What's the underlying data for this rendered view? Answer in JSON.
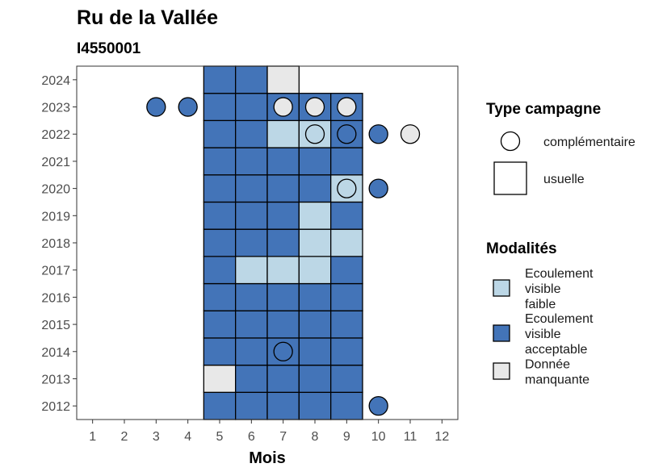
{
  "chart_data": {
    "type": "heatmap",
    "title": "Ru de la Vallée",
    "subtitle": "I4550001",
    "xlabel": "Mois",
    "ylabel": "",
    "x_ticks": [
      "1",
      "2",
      "3",
      "4",
      "5",
      "6",
      "7",
      "8",
      "9",
      "10",
      "11",
      "12"
    ],
    "y_ticks": [
      "2012",
      "2013",
      "2014",
      "2015",
      "2016",
      "2017",
      "2018",
      "2019",
      "2020",
      "2021",
      "2022",
      "2023",
      "2024"
    ],
    "xlim": [
      0.5,
      12.5
    ],
    "ylim": [
      2011.5,
      2024.5
    ],
    "grid": false,
    "colors": {
      "faible": "#bcd7e6",
      "acceptable": "#4374b8",
      "manquante": "#e8e8e8"
    },
    "legend_type": {
      "title": "Type campagne",
      "items": [
        {
          "shape": "circle",
          "label": "complémentaire"
        },
        {
          "shape": "square",
          "label": "usuelle"
        }
      ]
    },
    "legend_modalites": {
      "title": "Modalités",
      "items": [
        {
          "key": "faible",
          "lines": [
            "Ecoulement",
            "visible",
            "faible"
          ]
        },
        {
          "key": "acceptable",
          "lines": [
            "Ecoulement",
            "visible",
            "acceptable"
          ]
        },
        {
          "key": "manquante",
          "lines": [
            "Donnée",
            "manquante"
          ]
        }
      ]
    },
    "usuelle": [
      {
        "year": 2012,
        "values": {
          "5": "acceptable",
          "6": "acceptable",
          "7": "acceptable",
          "8": "acceptable",
          "9": "acceptable"
        }
      },
      {
        "year": 2013,
        "values": {
          "5": "manquante",
          "6": "acceptable",
          "7": "acceptable",
          "8": "acceptable",
          "9": "acceptable"
        }
      },
      {
        "year": 2014,
        "values": {
          "5": "acceptable",
          "6": "acceptable",
          "7": "acceptable",
          "8": "acceptable",
          "9": "acceptable"
        }
      },
      {
        "year": 2015,
        "values": {
          "5": "acceptable",
          "6": "acceptable",
          "7": "acceptable",
          "8": "acceptable",
          "9": "acceptable"
        }
      },
      {
        "year": 2016,
        "values": {
          "5": "acceptable",
          "6": "acceptable",
          "7": "acceptable",
          "8": "acceptable",
          "9": "acceptable"
        }
      },
      {
        "year": 2017,
        "values": {
          "5": "acceptable",
          "6": "faible",
          "7": "faible",
          "8": "faible",
          "9": "acceptable"
        }
      },
      {
        "year": 2018,
        "values": {
          "5": "acceptable",
          "6": "acceptable",
          "7": "acceptable",
          "8": "faible",
          "9": "faible"
        }
      },
      {
        "year": 2019,
        "values": {
          "5": "acceptable",
          "6": "acceptable",
          "7": "acceptable",
          "8": "faible",
          "9": "acceptable"
        }
      },
      {
        "year": 2020,
        "values": {
          "5": "acceptable",
          "6": "acceptable",
          "7": "acceptable",
          "8": "acceptable",
          "9": "faible"
        }
      },
      {
        "year": 2021,
        "values": {
          "5": "acceptable",
          "6": "acceptable",
          "7": "acceptable",
          "8": "acceptable",
          "9": "acceptable"
        }
      },
      {
        "year": 2022,
        "values": {
          "5": "acceptable",
          "6": "acceptable",
          "7": "faible",
          "8": "faible",
          "9": "acceptable"
        }
      },
      {
        "year": 2023,
        "values": {
          "5": "acceptable",
          "6": "acceptable",
          "7": "acceptable",
          "8": "acceptable",
          "9": "acceptable"
        }
      },
      {
        "year": 2024,
        "values": {
          "5": "acceptable",
          "6": "acceptable",
          "7": "manquante"
        }
      }
    ],
    "complementaire": [
      {
        "year": 2023,
        "month": 3,
        "value": "acceptable"
      },
      {
        "year": 2023,
        "month": 4,
        "value": "acceptable"
      },
      {
        "year": 2023,
        "month": 7,
        "value": "manquante"
      },
      {
        "year": 2023,
        "month": 8,
        "value": "manquante"
      },
      {
        "year": 2023,
        "month": 9,
        "value": "manquante"
      },
      {
        "year": 2022,
        "month": 8,
        "value": "faible"
      },
      {
        "year": 2022,
        "month": 9,
        "value": "acceptable"
      },
      {
        "year": 2022,
        "month": 10,
        "value": "acceptable"
      },
      {
        "year": 2022,
        "month": 11,
        "value": "manquante"
      },
      {
        "year": 2020,
        "month": 9,
        "value": "faible"
      },
      {
        "year": 2020,
        "month": 10,
        "value": "acceptable"
      },
      {
        "year": 2014,
        "month": 7,
        "value": "acceptable"
      },
      {
        "year": 2012,
        "month": 10,
        "value": "acceptable"
      }
    ]
  }
}
